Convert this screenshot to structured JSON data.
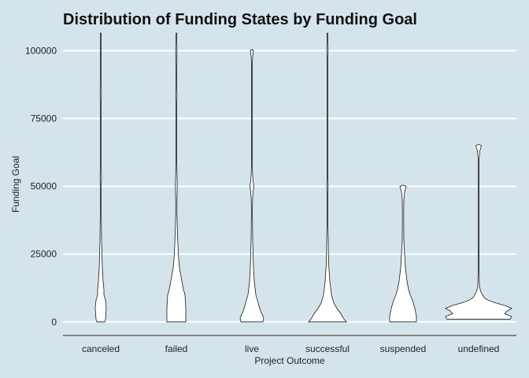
{
  "chart_data": {
    "type": "violin",
    "title": "Distribution of Funding States by Funding Goal",
    "xlabel": "Project Outcome",
    "ylabel": "Funding Goal",
    "ylim": [
      -5000,
      106500
    ],
    "yticks": [
      0,
      25000,
      50000,
      75000,
      100000
    ],
    "ytick_labels": [
      "0",
      "25000",
      "50000",
      "75000",
      "100000"
    ],
    "grid": true,
    "categories": [
      "canceled",
      "failed",
      "live",
      "successful",
      "suspended",
      "undefined"
    ],
    "series": [
      {
        "category": "canceled",
        "profile": [
          [
            0,
            5
          ],
          [
            1000,
            6
          ],
          [
            5000,
            7
          ],
          [
            8000,
            6
          ],
          [
            10000,
            4
          ],
          [
            12000,
            4
          ],
          [
            15000,
            3
          ],
          [
            20000,
            2
          ],
          [
            25000,
            1.5
          ],
          [
            30000,
            1
          ],
          [
            35000,
            0.8
          ],
          [
            40000,
            0.6
          ],
          [
            50000,
            0.6
          ],
          [
            53000,
            0.8
          ],
          [
            60000,
            0.5
          ],
          [
            80000,
            0.5
          ],
          [
            84000,
            0.8
          ],
          [
            90000,
            0.5
          ],
          [
            106500,
            0.5
          ]
        ]
      },
      {
        "category": "failed",
        "profile": [
          [
            0,
            12
          ],
          [
            5000,
            12
          ],
          [
            10000,
            11
          ],
          [
            12000,
            9
          ],
          [
            15000,
            7
          ],
          [
            20000,
            4
          ],
          [
            25000,
            2.5
          ],
          [
            30000,
            1.8
          ],
          [
            35000,
            1.2
          ],
          [
            40000,
            0.8
          ],
          [
            45000,
            0.8
          ],
          [
            50000,
            1.2
          ],
          [
            55000,
            0.8
          ],
          [
            60000,
            0.5
          ],
          [
            80000,
            0.5
          ],
          [
            83000,
            0.8
          ],
          [
            90000,
            0.5
          ],
          [
            100000,
            0.8
          ],
          [
            106500,
            0.5
          ]
        ]
      },
      {
        "category": "live",
        "profile": [
          [
            0,
            14
          ],
          [
            1500,
            15
          ],
          [
            4000,
            11
          ],
          [
            6000,
            9
          ],
          [
            8000,
            7
          ],
          [
            10000,
            5
          ],
          [
            15000,
            3
          ],
          [
            20000,
            2
          ],
          [
            25000,
            1.5
          ],
          [
            30000,
            1
          ],
          [
            35000,
            0.8
          ],
          [
            40000,
            0.6
          ],
          [
            45000,
            0.8
          ],
          [
            48000,
            1.5
          ],
          [
            50000,
            2.5
          ],
          [
            52000,
            1.5
          ],
          [
            55000,
            0.8
          ],
          [
            60000,
            0.4
          ],
          [
            95000,
            0.4
          ],
          [
            98000,
            1
          ],
          [
            100000,
            2
          ],
          [
            100500,
            0
          ]
        ]
      },
      {
        "category": "successful",
        "profile": [
          [
            0,
            24
          ],
          [
            1000,
            21
          ],
          [
            3000,
            17
          ],
          [
            5000,
            12
          ],
          [
            7000,
            8
          ],
          [
            10000,
            5
          ],
          [
            15000,
            3
          ],
          [
            20000,
            1.8
          ],
          [
            25000,
            1.2
          ],
          [
            30000,
            1
          ],
          [
            35000,
            0.6
          ],
          [
            45000,
            0.4
          ],
          [
            50000,
            0.8
          ],
          [
            55000,
            0.4
          ],
          [
            95000,
            0.4
          ],
          [
            100000,
            0.8
          ],
          [
            106500,
            0.4
          ]
        ]
      },
      {
        "category": "suspended",
        "profile": [
          [
            0,
            17
          ],
          [
            2000,
            17
          ],
          [
            5000,
            15
          ],
          [
            8000,
            12
          ],
          [
            10000,
            9
          ],
          [
            12000,
            7
          ],
          [
            15000,
            5
          ],
          [
            20000,
            3
          ],
          [
            25000,
            2
          ],
          [
            30000,
            1
          ],
          [
            40000,
            0.8
          ],
          [
            45000,
            1
          ],
          [
            48000,
            2
          ],
          [
            50000,
            4
          ],
          [
            50500,
            0
          ]
        ]
      },
      {
        "category": "undefined",
        "profile": [
          [
            1000,
            40
          ],
          [
            2000,
            42
          ],
          [
            3000,
            33
          ],
          [
            4000,
            36
          ],
          [
            5000,
            42
          ],
          [
            6000,
            34
          ],
          [
            7000,
            22
          ],
          [
            8000,
            12
          ],
          [
            9000,
            7
          ],
          [
            10000,
            5
          ],
          [
            11000,
            3
          ],
          [
            13000,
            1
          ],
          [
            20000,
            0.5
          ],
          [
            60000,
            0.5
          ],
          [
            63000,
            1.5
          ],
          [
            65000,
            3.5
          ],
          [
            65500,
            0
          ]
        ]
      }
    ]
  }
}
